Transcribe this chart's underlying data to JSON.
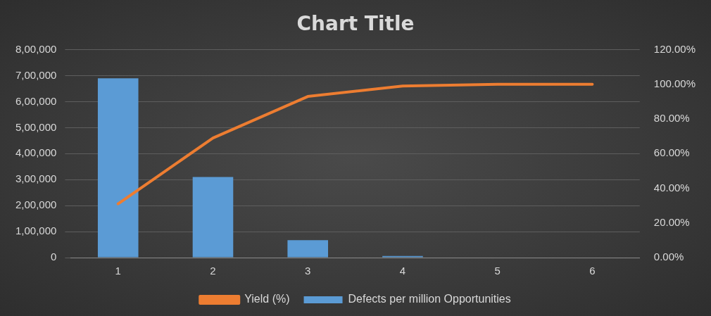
{
  "chart_data": {
    "type": "bar",
    "title": "Chart Title",
    "categories": [
      "1",
      "2",
      "3",
      "4",
      "5",
      "6"
    ],
    "series": [
      {
        "name": "Defects per million Opportunities",
        "color": "#5b9bd5",
        "values": [
          690000,
          310000,
          67000,
          6000,
          null,
          null
        ]
      },
      {
        "name": "Yield (%)",
        "color": "#ed7d31",
        "type": "line",
        "axis": "y2",
        "values": [
          31,
          69,
          93,
          99,
          100,
          100
        ]
      }
    ],
    "ylim": [
      0,
      800000
    ],
    "yticks": [
      {
        "value": 0,
        "label": "0"
      },
      {
        "value": 100000,
        "label": "1,00,000"
      },
      {
        "value": 200000,
        "label": "2,00,000"
      },
      {
        "value": 300000,
        "label": "3,00,000"
      },
      {
        "value": 400000,
        "label": "4,00,000"
      },
      {
        "value": 500000,
        "label": "5,00,000"
      },
      {
        "value": 600000,
        "label": "6,00,000"
      },
      {
        "value": 700000,
        "label": "7,00,000"
      },
      {
        "value": 800000,
        "label": "8,00,000"
      }
    ],
    "y2lim": [
      0,
      120
    ],
    "y2ticks": [
      {
        "value": 0,
        "label": "0.00%"
      },
      {
        "value": 20,
        "label": "20.00%"
      },
      {
        "value": 40,
        "label": "40.00%"
      },
      {
        "value": 60,
        "label": "60.00%"
      },
      {
        "value": 80,
        "label": "80.00%"
      },
      {
        "value": 100,
        "label": "100.00%"
      },
      {
        "value": 120,
        "label": "120.00%"
      }
    ],
    "grid": "y",
    "legend": "bottom",
    "marker": "none"
  }
}
